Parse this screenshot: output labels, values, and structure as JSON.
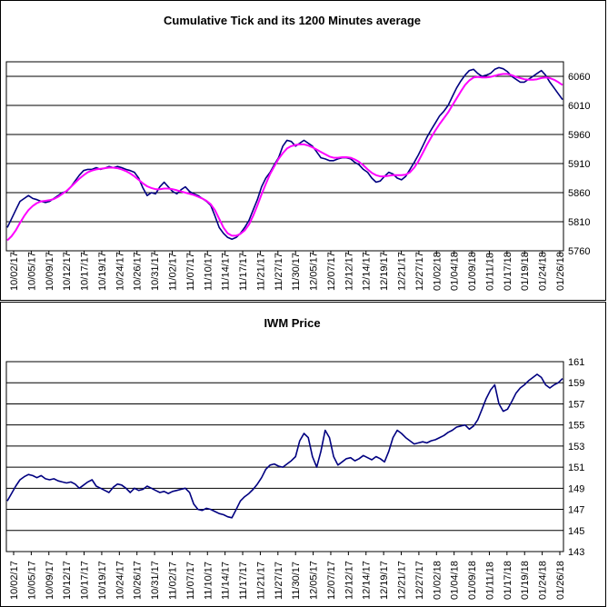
{
  "chart_data": [
    {
      "type": "line",
      "title": "Cumulative Tick and its 1200 Minutes average",
      "ylim": [
        5760,
        6085
      ],
      "yticks": [
        5760,
        5810,
        5860,
        5910,
        5960,
        6010,
        6060
      ],
      "ytick_labels": [
        "5760",
        "5810",
        "5860",
        "5910",
        "5960",
        "6010",
        "6060"
      ],
      "grid": true,
      "legend": "none",
      "tick_dates": [
        "10/02/17",
        "10/05/17",
        "10/09/17",
        "10/12/17",
        "10/17/17",
        "10/19/17",
        "10/24/17",
        "10/26/17",
        "10/31/17",
        "11/02/17",
        "11/07/17",
        "11/10/17",
        "11/14/17",
        "11/17/17",
        "11/21/17",
        "11/27/17",
        "11/30/17",
        "12/05/17",
        "12/07/17",
        "12/12/17",
        "12/14/17",
        "12/19/17",
        "12/21/17",
        "12/27/17",
        "01/02/18",
        "01/04/18",
        "01/09/18",
        "01/11/18",
        "01/17/18",
        "01/19/18",
        "01/24/18",
        "01/26/18"
      ],
      "series": [
        {
          "color": "#000080",
          "values": [
            5800,
            5815,
            5830,
            5845,
            5850,
            5855,
            5850,
            5848,
            5845,
            5843,
            5845,
            5850,
            5855,
            5860,
            5862,
            5870,
            5880,
            5890,
            5898,
            5900,
            5900,
            5903,
            5900,
            5902,
            5905,
            5903,
            5905,
            5903,
            5900,
            5898,
            5895,
            5885,
            5868,
            5855,
            5860,
            5858,
            5870,
            5878,
            5870,
            5862,
            5858,
            5865,
            5870,
            5862,
            5858,
            5855,
            5850,
            5845,
            5838,
            5820,
            5800,
            5790,
            5783,
            5780,
            5783,
            5790,
            5800,
            5812,
            5830,
            5848,
            5870,
            5885,
            5895,
            5908,
            5920,
            5940,
            5950,
            5948,
            5940,
            5945,
            5950,
            5945,
            5940,
            5930,
            5920,
            5918,
            5915,
            5915,
            5918,
            5920,
            5920,
            5918,
            5912,
            5908,
            5900,
            5895,
            5885,
            5878,
            5880,
            5888,
            5895,
            5892,
            5885,
            5882,
            5888,
            5900,
            5912,
            5925,
            5940,
            5955,
            5968,
            5980,
            5992,
            6000,
            6010,
            6025,
            6040,
            6052,
            6062,
            6070,
            6072,
            6065,
            6060,
            6062,
            6065,
            6072,
            6075,
            6073,
            6068,
            6060,
            6055,
            6050,
            6050,
            6055,
            6060,
            6065,
            6070,
            6062,
            6050,
            6040,
            6030,
            6020
          ]
        },
        {
          "color": "#ff00ff",
          "values": [
            5778,
            5785,
            5795,
            5808,
            5820,
            5830,
            5837,
            5842,
            5845,
            5846,
            5847,
            5849,
            5853,
            5858,
            5863,
            5870,
            5877,
            5884,
            5890,
            5895,
            5898,
            5900,
            5901,
            5902,
            5903,
            5903,
            5902,
            5900,
            5897,
            5893,
            5888,
            5882,
            5876,
            5871,
            5868,
            5866,
            5866,
            5867,
            5867,
            5866,
            5864,
            5862,
            5860,
            5858,
            5856,
            5853,
            5850,
            5846,
            5840,
            5830,
            5815,
            5800,
            5790,
            5786,
            5786,
            5789,
            5795,
            5805,
            5820,
            5838,
            5857,
            5875,
            5892,
            5905,
            5918,
            5928,
            5936,
            5940,
            5942,
            5943,
            5943,
            5941,
            5938,
            5934,
            5930,
            5926,
            5922,
            5920,
            5920,
            5921,
            5921,
            5920,
            5917,
            5913,
            5907,
            5900,
            5894,
            5890,
            5888,
            5888,
            5889,
            5890,
            5890,
            5890,
            5891,
            5895,
            5903,
            5914,
            5928,
            5942,
            5955,
            5967,
            5978,
            5988,
            5998,
            6010,
            6022,
            6034,
            6045,
            6053,
            6058,
            6059,
            6058,
            6058,
            6059,
            6061,
            6063,
            6064,
            6064,
            6062,
            6059,
            6057,
            6055,
            6054,
            6054,
            6055,
            6057,
            6058,
            6057,
            6054,
            6050,
            6045
          ]
        }
      ]
    },
    {
      "type": "line",
      "title": "IWM Price",
      "ylim": [
        143,
        161
      ],
      "yticks": [
        143,
        145,
        147,
        149,
        151,
        153,
        155,
        157,
        159,
        161
      ],
      "ytick_labels": [
        "143",
        "145",
        "147",
        "149",
        "151",
        "153",
        "155",
        "157",
        "159",
        "161"
      ],
      "grid": true,
      "legend": "none",
      "tick_dates": [
        "10/02/17",
        "10/05/17",
        "10/09/17",
        "10/12/17",
        "10/17/17",
        "10/19/17",
        "10/24/17",
        "10/26/17",
        "10/31/17",
        "11/02/17",
        "11/07/17",
        "11/10/17",
        "11/14/17",
        "11/17/17",
        "11/21/17",
        "11/27/17",
        "11/30/17",
        "12/05/17",
        "12/07/17",
        "12/12/17",
        "12/14/17",
        "12/19/17",
        "12/21/17",
        "12/27/17",
        "01/02/18",
        "01/04/18",
        "01/09/18",
        "01/11/18",
        "01/17/18",
        "01/19/18",
        "01/24/18",
        "01/26/18"
      ],
      "series": [
        {
          "color": "#000080",
          "values": [
            147.8,
            148.5,
            149.2,
            149.8,
            150.1,
            150.3,
            150.2,
            150.0,
            150.2,
            149.9,
            149.8,
            149.9,
            149.7,
            149.6,
            149.5,
            149.6,
            149.4,
            149.0,
            149.3,
            149.6,
            149.8,
            149.2,
            149.0,
            148.8,
            148.6,
            149.1,
            149.4,
            149.3,
            149.0,
            148.6,
            149.0,
            148.8,
            148.9,
            149.2,
            149.0,
            148.8,
            148.6,
            148.7,
            148.5,
            148.7,
            148.8,
            148.9,
            149.0,
            148.6,
            147.5,
            147.0,
            146.9,
            147.1,
            147.0,
            146.8,
            146.6,
            146.5,
            146.3,
            146.2,
            147.0,
            147.8,
            148.2,
            148.5,
            148.9,
            149.4,
            150.0,
            150.8,
            151.2,
            151.3,
            151.1,
            151.0,
            151.3,
            151.6,
            152.0,
            153.5,
            154.2,
            153.8,
            152.0,
            151.0,
            152.5,
            154.5,
            153.8,
            152.0,
            151.2,
            151.5,
            151.8,
            151.9,
            151.6,
            151.8,
            152.1,
            151.9,
            151.7,
            152.0,
            151.8,
            151.5,
            152.5,
            153.8,
            154.5,
            154.2,
            153.8,
            153.5,
            153.2,
            153.3,
            153.4,
            153.3,
            153.5,
            153.6,
            153.8,
            154.0,
            154.3,
            154.5,
            154.8,
            154.9,
            155.0,
            154.6,
            154.9,
            155.5,
            156.5,
            157.5,
            158.3,
            158.8,
            157.0,
            156.3,
            156.5,
            157.2,
            158.0,
            158.5,
            158.8,
            159.2,
            159.5,
            159.8,
            159.5,
            158.8,
            158.5,
            158.8,
            159.0,
            159.4
          ]
        }
      ]
    }
  ]
}
